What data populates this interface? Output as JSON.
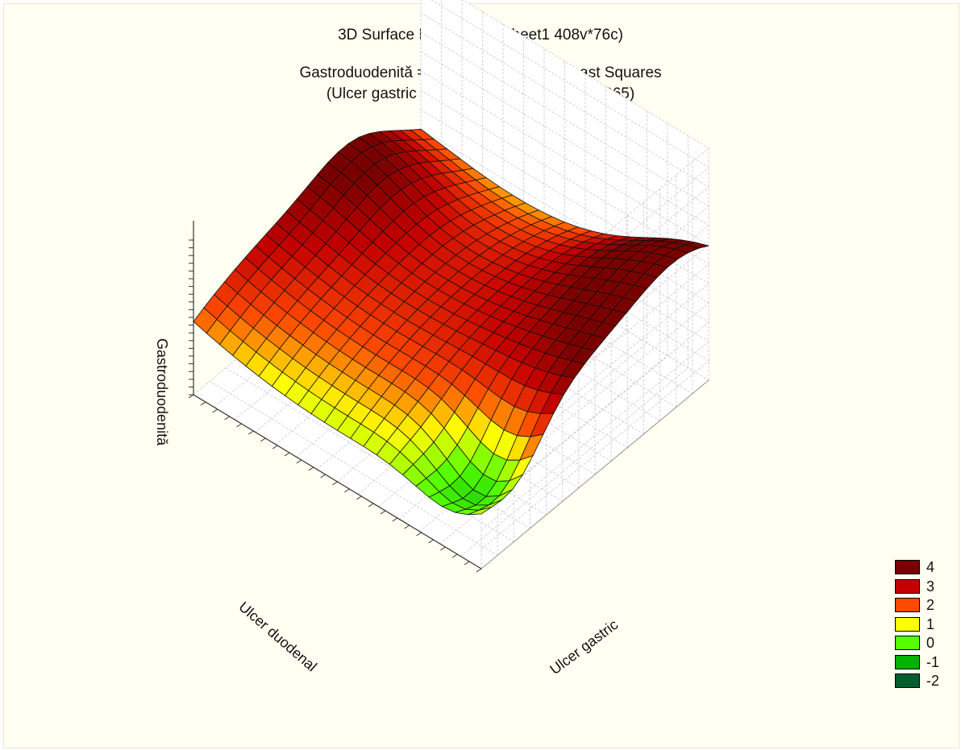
{
  "chart_data": {
    "type": "surface3d",
    "title": "3D Surface Plot (Spreadsheet1 408v*76c)",
    "subtitle_lines": [
      "Gastroduodenită = Distance Weighted Least Squares",
      "(Ulcer gastric .0987 x Ulcer duodenal .07865)"
    ],
    "xlabel": "Ulcer gastric",
    "ylabel": "Ulcer duodenal",
    "zlabel": "Gastroduodenită",
    "zlim": [
      -2,
      6
    ],
    "grid": true,
    "legend_position": "bottom-right",
    "legend": [
      {
        "label": "4",
        "color": "#7a0000"
      },
      {
        "label": "3",
        "color": "#c40000"
      },
      {
        "label": "2",
        "color": "#ff4a00"
      },
      {
        "label": "1",
        "color": "#ffff00"
      },
      {
        "label": "0",
        "color": "#55ff00"
      },
      {
        "label": "-1",
        "color": "#00b400"
      },
      {
        "label": "-2",
        "color": "#005e2e"
      }
    ],
    "grid_size": [
      22,
      22
    ],
    "surface_description": "saddle surface: high along the Ulcer gastric edges, low in the interior with a minimum near the front corner; peak values about 4.8 at the right side"
  }
}
